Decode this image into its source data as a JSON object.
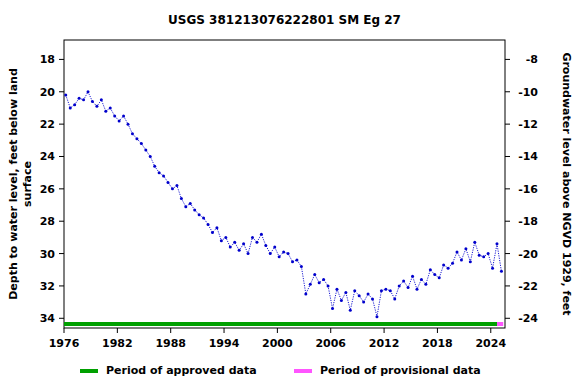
{
  "chart_data": {
    "type": "line",
    "title": "USGS 381213076222801 SM Eg  27",
    "ylabel": [
      "Depth to water level, feet below land",
      "surface"
    ],
    "y2label": "Groundwater level above NGVD 1929, feet",
    "xlim": [
      1976,
      2025.6
    ],
    "xticks": [
      1976,
      1982,
      1988,
      1994,
      2000,
      2006,
      2012,
      2018,
      2024
    ],
    "ylim": [
      16.8,
      34.6
    ],
    "yticks": [
      18,
      20,
      22,
      24,
      26,
      28,
      30,
      32,
      34
    ],
    "y2lim": [
      -6.8,
      -24.6
    ],
    "y2ticks": [
      -8,
      -10,
      -12,
      -14,
      -16,
      -18,
      -20,
      -22,
      -24
    ],
    "grid": false,
    "series": [
      {
        "color": "#0000cc",
        "marker": "circle",
        "line_style": "dotted",
        "x": [
          1976.2,
          1976.7,
          1977.2,
          1977.7,
          1978.2,
          1978.7,
          1979.2,
          1979.7,
          1980.2,
          1980.7,
          1981.2,
          1981.7,
          1982.2,
          1982.7,
          1983.2,
          1983.7,
          1984.2,
          1984.7,
          1985.2,
          1985.7,
          1986.2,
          1986.7,
          1987.2,
          1987.7,
          1988.2,
          1988.7,
          1989.2,
          1989.7,
          1990.2,
          1990.7,
          1991.2,
          1991.7,
          1992.2,
          1992.7,
          1993.2,
          1993.7,
          1994.2,
          1994.7,
          1995.2,
          1995.7,
          1996.2,
          1996.7,
          1997.2,
          1997.7,
          1998.2,
          1998.7,
          1999.2,
          1999.7,
          2000.2,
          2000.7,
          2001.2,
          2001.7,
          2002.2,
          2002.7,
          2003.2,
          2003.7,
          2004.2,
          2004.7,
          2005.2,
          2005.7,
          2006.2,
          2006.7,
          2007.2,
          2007.7,
          2008.2,
          2008.7,
          2009.2,
          2009.7,
          2010.2,
          2010.7,
          2011.2,
          2011.7,
          2012.2,
          2012.7,
          2013.2,
          2013.7,
          2014.2,
          2014.7,
          2015.2,
          2015.7,
          2016.2,
          2016.7,
          2017.2,
          2017.7,
          2018.2,
          2018.7,
          2019.2,
          2019.7,
          2020.2,
          2020.7,
          2021.2,
          2021.7,
          2022.2,
          2022.7,
          2023.2,
          2023.7,
          2024.2,
          2024.7,
          2025.2
        ],
        "values": [
          20.2,
          21.0,
          20.8,
          20.4,
          20.5,
          20.0,
          20.6,
          20.9,
          20.5,
          21.2,
          21.0,
          21.5,
          21.8,
          21.5,
          22.0,
          22.6,
          22.9,
          23.2,
          23.6,
          24.0,
          24.6,
          25.0,
          25.2,
          25.6,
          26.0,
          25.8,
          26.6,
          27.1,
          26.9,
          27.3,
          27.6,
          27.8,
          28.2,
          28.7,
          28.4,
          29.2,
          29.0,
          29.6,
          29.3,
          29.8,
          29.4,
          30.0,
          29.0,
          29.3,
          28.8,
          29.5,
          30.0,
          29.6,
          30.2,
          29.9,
          30.0,
          30.5,
          30.4,
          30.8,
          32.5,
          31.9,
          31.3,
          31.8,
          31.6,
          32.0,
          33.4,
          32.2,
          32.9,
          32.4,
          33.5,
          32.3,
          32.6,
          33.0,
          32.5,
          32.8,
          33.9,
          32.3,
          32.2,
          32.3,
          32.8,
          32.0,
          31.7,
          32.1,
          31.4,
          32.2,
          31.6,
          31.9,
          31.0,
          31.3,
          31.5,
          30.7,
          30.9,
          30.6,
          29.9,
          30.4,
          29.7,
          30.5,
          29.3,
          30.1,
          30.2,
          30.0,
          30.9,
          29.4,
          31.1
        ]
      }
    ],
    "periods": [
      {
        "name": "Period of approved data",
        "color": "#00a000",
        "start": 1976,
        "end": 2024.7
      },
      {
        "name": "Period of provisional data",
        "color": "#ff55ff",
        "start": 2024.7,
        "end": 2025.4
      }
    ]
  }
}
